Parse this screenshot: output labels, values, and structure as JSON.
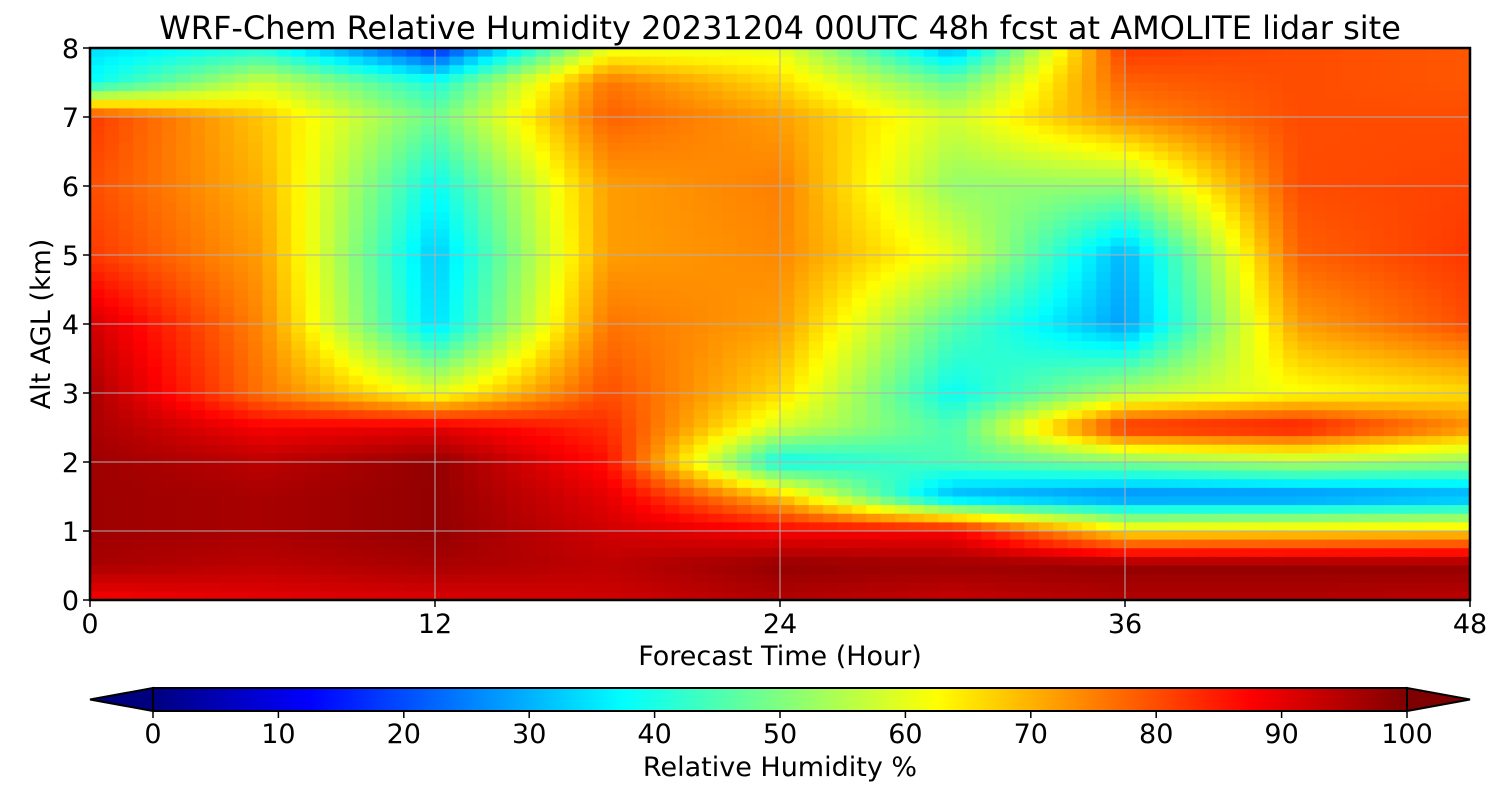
{
  "chart_data": {
    "type": "heatmap",
    "title": "WRF-Chem Relative Humidity 20231204 00UTC 48h fcst at AMOLITE lidar site",
    "xlabel": "Forecast Time (Hour)",
    "ylabel": "Alt AGL (km)",
    "xlim": [
      0,
      48
    ],
    "ylim": [
      0,
      8
    ],
    "x_ticks": [
      "0",
      "12",
      "24",
      "36",
      "48"
    ],
    "y_ticks": [
      "0",
      "1",
      "2",
      "3",
      "4",
      "5",
      "6",
      "7",
      "8"
    ],
    "grid": true,
    "colorbar": {
      "label": "Relative Humidity %",
      "range": [
        0,
        100
      ],
      "ticks": [
        "0",
        "10",
        "20",
        "30",
        "40",
        "50",
        "60",
        "70",
        "80",
        "90",
        "100"
      ],
      "colormap": "jet",
      "extend": "both",
      "stops": [
        "#00007f",
        "#0000ff",
        "#007fff",
        "#00ffff",
        "#7fff7f",
        "#ffff00",
        "#ff7f00",
        "#ff0000",
        "#7f0000"
      ]
    },
    "x": [
      0,
      6,
      12,
      18,
      24,
      30,
      36,
      42,
      48
    ],
    "y": [
      0,
      0.5,
      1,
      1.5,
      2,
      2.5,
      3,
      4,
      5,
      6,
      7,
      7.5,
      8
    ],
    "values": [
      [
        88,
        90,
        91,
        92,
        95,
        93,
        95,
        95,
        94
      ],
      [
        96,
        94,
        96,
        94,
        98,
        97,
        98,
        98,
        98
      ],
      [
        97,
        96,
        98,
        92,
        88,
        88,
        65,
        66,
        67
      ],
      [
        97,
        96,
        98,
        90,
        68,
        30,
        25,
        25,
        28
      ],
      [
        97,
        94,
        98,
        86,
        38,
        45,
        50,
        55,
        52
      ],
      [
        96,
        88,
        90,
        83,
        58,
        45,
        84,
        86,
        74
      ],
      [
        96,
        76,
        60,
        80,
        66,
        38,
        55,
        62,
        66
      ],
      [
        92,
        74,
        34,
        76,
        72,
        46,
        28,
        72,
        80
      ],
      [
        82,
        72,
        32,
        72,
        74,
        60,
        30,
        78,
        82
      ],
      [
        80,
        70,
        38,
        72,
        75,
        52,
        52,
        80,
        81
      ],
      [
        82,
        68,
        48,
        78,
        72,
        58,
        74,
        80,
        80
      ],
      [
        38,
        58,
        40,
        76,
        66,
        48,
        78,
        80,
        79
      ],
      [
        34,
        40,
        15,
        60,
        60,
        30,
        82,
        80,
        79
      ]
    ]
  }
}
